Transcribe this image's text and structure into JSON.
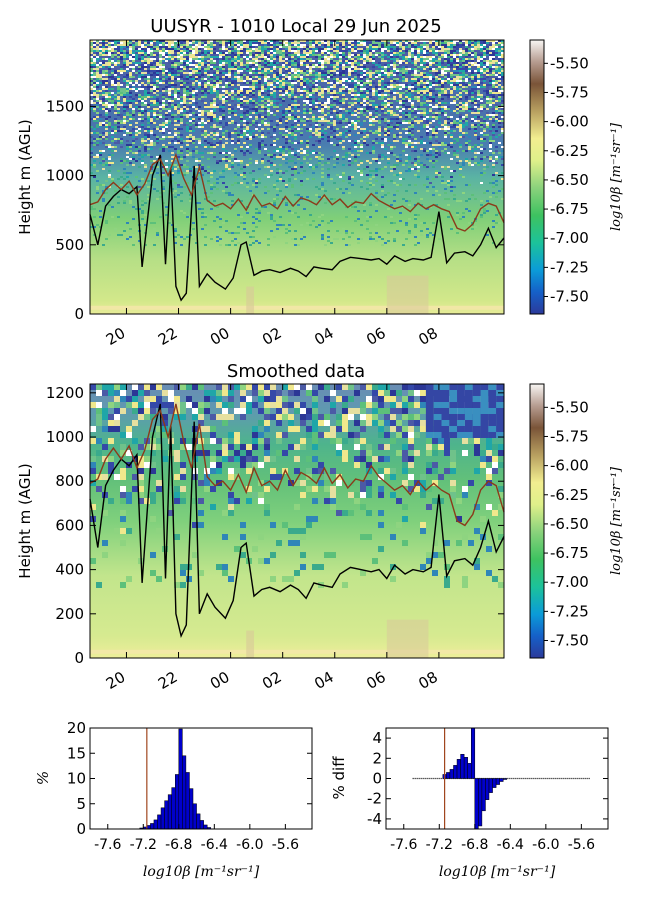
{
  "chart_data": [
    {
      "type": "heatmap",
      "title": "UUSYR - 1010 Local 29 Jun 2025",
      "ylabel": "Height m (AGL)",
      "xlabel": "",
      "yticks": [
        0,
        500,
        1000,
        1500
      ],
      "ylim": [
        0,
        1980
      ],
      "xlim": [
        18.6,
        34.5
      ],
      "xticks": [
        {
          "v": 20,
          "label": "20"
        },
        {
          "v": 22,
          "label": "22"
        },
        {
          "v": 24,
          "label": "00"
        },
        {
          "v": 26,
          "label": "02"
        },
        {
          "v": 28,
          "label": "04"
        },
        {
          "v": 30,
          "label": "06"
        },
        {
          "v": 32,
          "label": "08"
        }
      ],
      "colorbar": {
        "label": "log10β [m⁻¹sr⁻¹]",
        "range": [
          -7.65,
          -5.3
        ],
        "ticks": [
          "-5.50",
          "-5.75",
          "-6.00",
          "-6.25",
          "-6.50",
          "-6.75",
          "-7.00",
          "-7.25",
          "-7.50"
        ]
      },
      "grid": false,
      "series": [
        {
          "color": "#000000",
          "x": [
            18.6,
            18.9,
            19.2,
            19.5,
            19.8,
            20.1,
            20.4,
            20.6,
            21.0,
            21.3,
            21.5,
            21.7,
            21.9,
            22.1,
            22.3,
            22.6,
            22.8,
            23.1,
            23.4,
            23.8,
            24.1,
            24.4,
            24.6,
            24.9,
            25.2,
            25.5,
            25.9,
            26.3,
            26.6,
            26.9,
            27.2,
            27.5,
            27.9,
            28.2,
            28.6,
            29.0,
            29.4,
            29.7,
            30.0,
            30.3,
            30.7,
            31.0,
            31.4,
            31.7,
            32.0,
            32.3,
            32.6,
            33.0,
            33.3,
            33.6,
            33.9,
            34.2,
            34.5
          ],
          "values": [
            720,
            500,
            780,
            850,
            900,
            870,
            920,
            340,
            1000,
            1150,
            360,
            1050,
            200,
            100,
            150,
            1070,
            200,
            290,
            230,
            180,
            260,
            500,
            520,
            280,
            310,
            320,
            300,
            330,
            310,
            270,
            340,
            330,
            320,
            380,
            410,
            400,
            390,
            400,
            360,
            420,
            380,
            400,
            390,
            410,
            740,
            370,
            440,
            450,
            420,
            500,
            620,
            480,
            550
          ]
        },
        {
          "color": "#8b3a1a",
          "x": [
            18.6,
            18.9,
            19.2,
            19.5,
            19.8,
            20.1,
            20.4,
            20.7,
            21.0,
            21.3,
            21.6,
            21.9,
            22.2,
            22.5,
            22.8,
            23.1,
            23.4,
            23.7,
            24.0,
            24.3,
            24.6,
            24.9,
            25.2,
            25.5,
            25.8,
            26.1,
            26.4,
            26.7,
            27.0,
            27.3,
            27.6,
            27.9,
            28.2,
            28.5,
            28.8,
            29.1,
            29.4,
            29.7,
            30.0,
            30.3,
            30.6,
            30.9,
            31.2,
            31.5,
            31.8,
            32.1,
            32.4,
            32.7,
            33.0,
            33.3,
            33.6,
            33.9,
            34.2,
            34.5
          ],
          "values": [
            790,
            810,
            900,
            950,
            900,
            960,
            860,
            940,
            1080,
            1120,
            1000,
            1150,
            980,
            860,
            1060,
            820,
            780,
            800,
            760,
            830,
            750,
            860,
            780,
            800,
            760,
            850,
            780,
            840,
            820,
            790,
            860,
            790,
            830,
            770,
            810,
            800,
            870,
            820,
            790,
            760,
            780,
            740,
            800,
            760,
            790,
            760,
            740,
            620,
            600,
            650,
            760,
            800,
            780,
            660
          ]
        }
      ]
    },
    {
      "type": "heatmap",
      "title": "Smoothed data",
      "ylabel": "Height m (AGL)",
      "xlabel": "",
      "yticks": [
        0,
        200,
        400,
        600,
        800,
        1000,
        1200
      ],
      "ylim": [
        0,
        1240
      ],
      "xlim": [
        18.6,
        34.5
      ],
      "xticks": [
        {
          "v": 20,
          "label": "20"
        },
        {
          "v": 22,
          "label": "22"
        },
        {
          "v": 24,
          "label": "00"
        },
        {
          "v": 26,
          "label": "02"
        },
        {
          "v": 28,
          "label": "04"
        },
        {
          "v": 30,
          "label": "06"
        },
        {
          "v": 32,
          "label": "08"
        }
      ],
      "colorbar": {
        "label": "log10β [m⁻¹sr⁻¹]",
        "range": [
          -7.65,
          -5.3
        ],
        "ticks": [
          "-5.50",
          "-5.75",
          "-6.00",
          "-6.25",
          "-6.50",
          "-6.75",
          "-7.00",
          "-7.25",
          "-7.50"
        ]
      },
      "grid": false,
      "series": [
        {
          "color": "#000000",
          "x": [
            18.6,
            18.9,
            19.2,
            19.5,
            19.8,
            20.1,
            20.4,
            20.6,
            21.0,
            21.3,
            21.5,
            21.7,
            21.9,
            22.1,
            22.3,
            22.6,
            22.8,
            23.1,
            23.4,
            23.8,
            24.1,
            24.4,
            24.6,
            24.9,
            25.2,
            25.5,
            25.9,
            26.3,
            26.6,
            26.9,
            27.2,
            27.5,
            27.9,
            28.2,
            28.6,
            29.0,
            29.4,
            29.7,
            30.0,
            30.3,
            30.7,
            31.0,
            31.4,
            31.7,
            32.0,
            32.3,
            32.6,
            33.0,
            33.3,
            33.6,
            33.9,
            34.2,
            34.5
          ],
          "values": [
            720,
            500,
            780,
            850,
            900,
            870,
            920,
            340,
            1000,
            1150,
            360,
            1050,
            200,
            100,
            150,
            1070,
            200,
            290,
            230,
            180,
            260,
            500,
            520,
            280,
            310,
            320,
            300,
            330,
            310,
            270,
            340,
            330,
            320,
            380,
            410,
            400,
            390,
            400,
            360,
            420,
            380,
            400,
            390,
            410,
            740,
            370,
            440,
            450,
            420,
            500,
            620,
            480,
            550
          ]
        },
        {
          "color": "#8b3a1a",
          "x": [
            18.6,
            18.9,
            19.2,
            19.5,
            19.8,
            20.1,
            20.4,
            20.7,
            21.0,
            21.3,
            21.6,
            21.9,
            22.2,
            22.5,
            22.8,
            23.1,
            23.4,
            23.7,
            24.0,
            24.3,
            24.6,
            24.9,
            25.2,
            25.5,
            25.8,
            26.1,
            26.4,
            26.7,
            27.0,
            27.3,
            27.6,
            27.9,
            28.2,
            28.5,
            28.8,
            29.1,
            29.4,
            29.7,
            30.0,
            30.3,
            30.6,
            30.9,
            31.2,
            31.5,
            31.8,
            32.1,
            32.4,
            32.7,
            33.0,
            33.3,
            33.6,
            33.9,
            34.2,
            34.5
          ],
          "values": [
            790,
            810,
            900,
            950,
            900,
            960,
            860,
            940,
            1080,
            1120,
            1000,
            1150,
            980,
            860,
            1060,
            820,
            780,
            800,
            760,
            830,
            750,
            860,
            780,
            800,
            760,
            850,
            780,
            840,
            820,
            790,
            860,
            790,
            830,
            770,
            810,
            800,
            870,
            820,
            790,
            760,
            780,
            740,
            800,
            760,
            790,
            760,
            740,
            620,
            600,
            650,
            760,
            800,
            780,
            660
          ]
        }
      ]
    },
    {
      "type": "bar",
      "title": "",
      "ylabel": "%",
      "xlabel": "log10β [m⁻¹sr⁻¹]",
      "xlim": [
        -7.8,
        -5.3
      ],
      "ylim": [
        0,
        20
      ],
      "yticks": [
        0,
        5,
        10,
        15,
        20
      ],
      "xticks": [
        "-7.6",
        "-7.2",
        "-6.8",
        "-6.4",
        "-6.0",
        "-5.6"
      ],
      "bar_color": "#0000cc",
      "vline": -7.16,
      "categories": [
        -7.22,
        -7.18,
        -7.14,
        -7.1,
        -7.06,
        -7.02,
        -6.98,
        -6.94,
        -6.9,
        -6.86,
        -6.82,
        -6.78,
        -6.74,
        -6.7,
        -6.66,
        -6.62,
        -6.58,
        -6.54,
        -6.5,
        -6.46
      ],
      "values": [
        0.2,
        0.4,
        0.7,
        1.1,
        1.8,
        2.8,
        4.2,
        5.6,
        6.8,
        8.2,
        10.8,
        19.8,
        14.5,
        11.2,
        8.0,
        5.0,
        3.0,
        1.7,
        0.8,
        0.3
      ]
    },
    {
      "type": "bar",
      "title": "",
      "ylabel": "% diff",
      "xlabel": "log10β [m⁻¹sr⁻¹]",
      "xlim": [
        -7.8,
        -5.3
      ],
      "ylim": [
        -5,
        5
      ],
      "yticks": [
        -4,
        -2,
        0,
        2,
        4
      ],
      "xticks": [
        "-7.6",
        "-7.2",
        "-6.8",
        "-6.4",
        "-6.0",
        "-5.6"
      ],
      "bar_color": "#0000cc",
      "vline": -7.14,
      "zero_line_x": [
        -7.5,
        -5.5
      ],
      "categories": [
        -7.14,
        -7.1,
        -7.06,
        -7.02,
        -6.98,
        -6.94,
        -6.9,
        -6.86,
        -6.82,
        -6.78,
        -6.74,
        -6.7,
        -6.66,
        -6.62,
        -6.58,
        -6.54,
        -6.5,
        -6.46
      ],
      "values": [
        0.4,
        0.6,
        0.9,
        1.3,
        1.9,
        2.4,
        2.1,
        1.5,
        5.0,
        -5.0,
        -4.7,
        -3.2,
        -2.1,
        -1.4,
        -0.9,
        -0.6,
        -0.3,
        -0.1
      ]
    }
  ]
}
